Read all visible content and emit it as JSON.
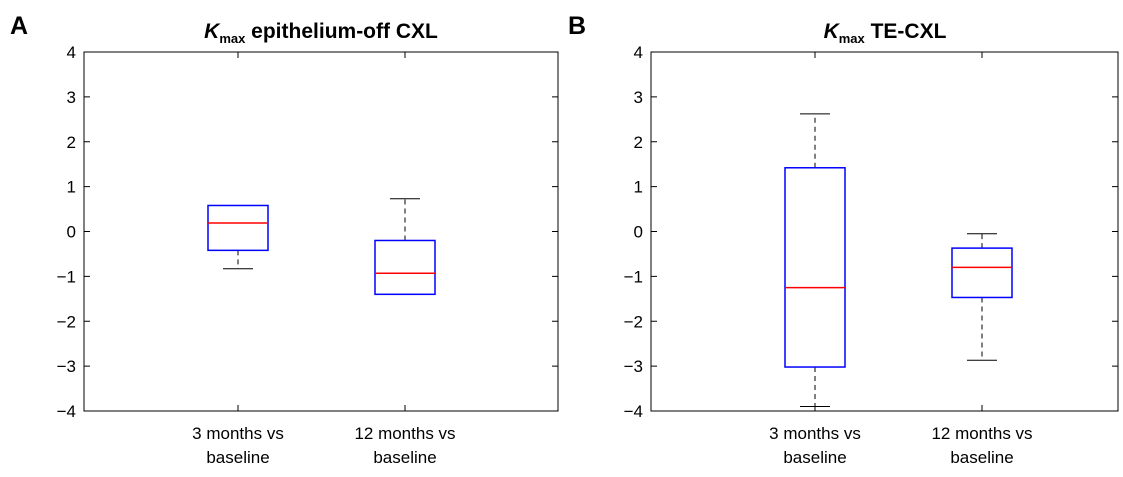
{
  "chart_data": [
    {
      "type": "box",
      "panel_label": "A",
      "title": {
        "symbol": "K",
        "subscript": "max",
        "rest": "epithelium-off CXL"
      },
      "categories": [
        [
          "3 months vs",
          "baseline"
        ],
        [
          "12 months vs",
          "baseline"
        ]
      ],
      "boxes": [
        {
          "whisker_low": -0.83,
          "q1": -0.42,
          "median": 0.19,
          "q3": 0.58,
          "whisker_high": 0.58
        },
        {
          "whisker_low": -1.4,
          "q1": -1.4,
          "median": -0.93,
          "q3": -0.2,
          "whisker_high": 0.73
        }
      ],
      "ylim": [
        -4,
        4
      ],
      "yticks": [
        -4,
        -3,
        -2,
        -1,
        0,
        1,
        2,
        3,
        4
      ],
      "ytick_labels": [
        "−4",
        "−3",
        "−2",
        "−1",
        "0",
        "1",
        "2",
        "3",
        "4"
      ],
      "grid": false,
      "colors": {
        "box": "#0000ff",
        "median": "#ff0000",
        "whisker": "#000000",
        "axis": "#000000"
      }
    },
    {
      "type": "box",
      "panel_label": "B",
      "title": {
        "symbol": "K",
        "subscript": "max",
        "rest": "TE-CXL"
      },
      "categories": [
        [
          "3 months vs",
          "baseline"
        ],
        [
          "12 months vs",
          "baseline"
        ]
      ],
      "boxes": [
        {
          "whisker_low": -3.9,
          "q1": -3.02,
          "median": -1.25,
          "q3": 1.42,
          "whisker_high": 2.62
        },
        {
          "whisker_low": -2.87,
          "q1": -1.47,
          "median": -0.8,
          "q3": -0.37,
          "whisker_high": -0.05
        }
      ],
      "ylim": [
        -4,
        4
      ],
      "yticks": [
        -4,
        -3,
        -2,
        -1,
        0,
        1,
        2,
        3,
        4
      ],
      "ytick_labels": [
        "−4",
        "−3",
        "−2",
        "−1",
        "0",
        "1",
        "2",
        "3",
        "4"
      ],
      "grid": false,
      "colors": {
        "box": "#0000ff",
        "median": "#ff0000",
        "whisker": "#000000",
        "axis": "#000000"
      }
    }
  ]
}
